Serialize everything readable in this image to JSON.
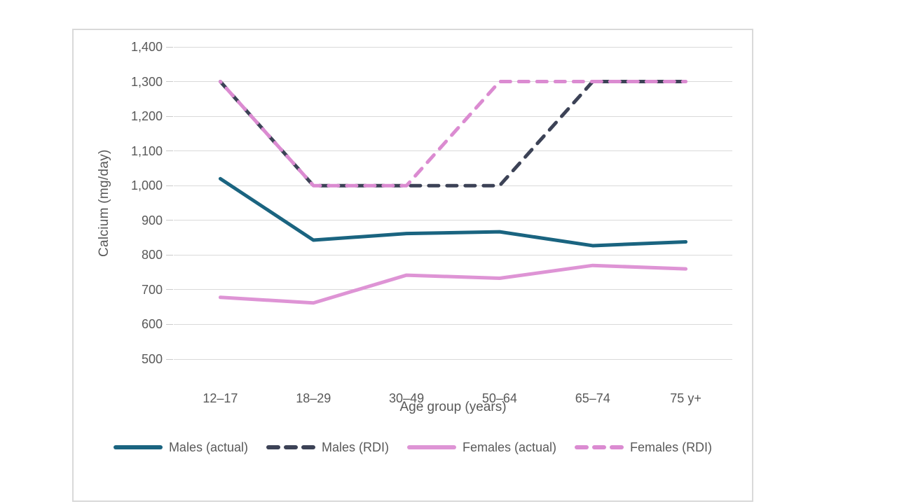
{
  "chart_data": {
    "type": "line",
    "title": "",
    "xlabel": "Age group (years)",
    "ylabel": "Calcium (mg/day)",
    "categories": [
      "12–17",
      "18–29",
      "30–49",
      "50–64",
      "65–74",
      "75 y+"
    ],
    "ylim": [
      500,
      1400
    ],
    "grid": true,
    "legend_position": "bottom",
    "y_ticks": [
      {
        "label": "1,400",
        "value": 1400
      },
      {
        "label": "1,300",
        "value": 1300
      },
      {
        "label": "1,200",
        "value": 1200
      },
      {
        "label": "1,100",
        "value": 1100
      },
      {
        "label": "1,000",
        "value": 1000
      },
      {
        "label": "900",
        "value": 900
      },
      {
        "label": "800",
        "value": 800
      },
      {
        "label": "700",
        "value": 700
      },
      {
        "label": "600",
        "value": 600
      },
      {
        "label": "500",
        "value": 500
      }
    ],
    "series": [
      {
        "name": "Males (actual)",
        "color": "#1a6480",
        "line_style": "solid",
        "values": [
          1020,
          843,
          862,
          867,
          827,
          838
        ]
      },
      {
        "name": "Males (RDI)",
        "color": "#3c4256",
        "line_style": "dashed",
        "values": [
          1300,
          1000,
          1000,
          1000,
          1300,
          1300
        ]
      },
      {
        "name": "Females (actual)",
        "color": "#de94d5",
        "line_style": "solid",
        "values": [
          678,
          662,
          742,
          733,
          770,
          760
        ]
      },
      {
        "name": "Females (RDI)",
        "color": "#db8bd1",
        "line_style": "dashed",
        "values": [
          1300,
          1000,
          1000,
          1300,
          1300,
          1300
        ]
      }
    ],
    "gridline_color": "#d9d9d9",
    "text_color": "#595959"
  }
}
